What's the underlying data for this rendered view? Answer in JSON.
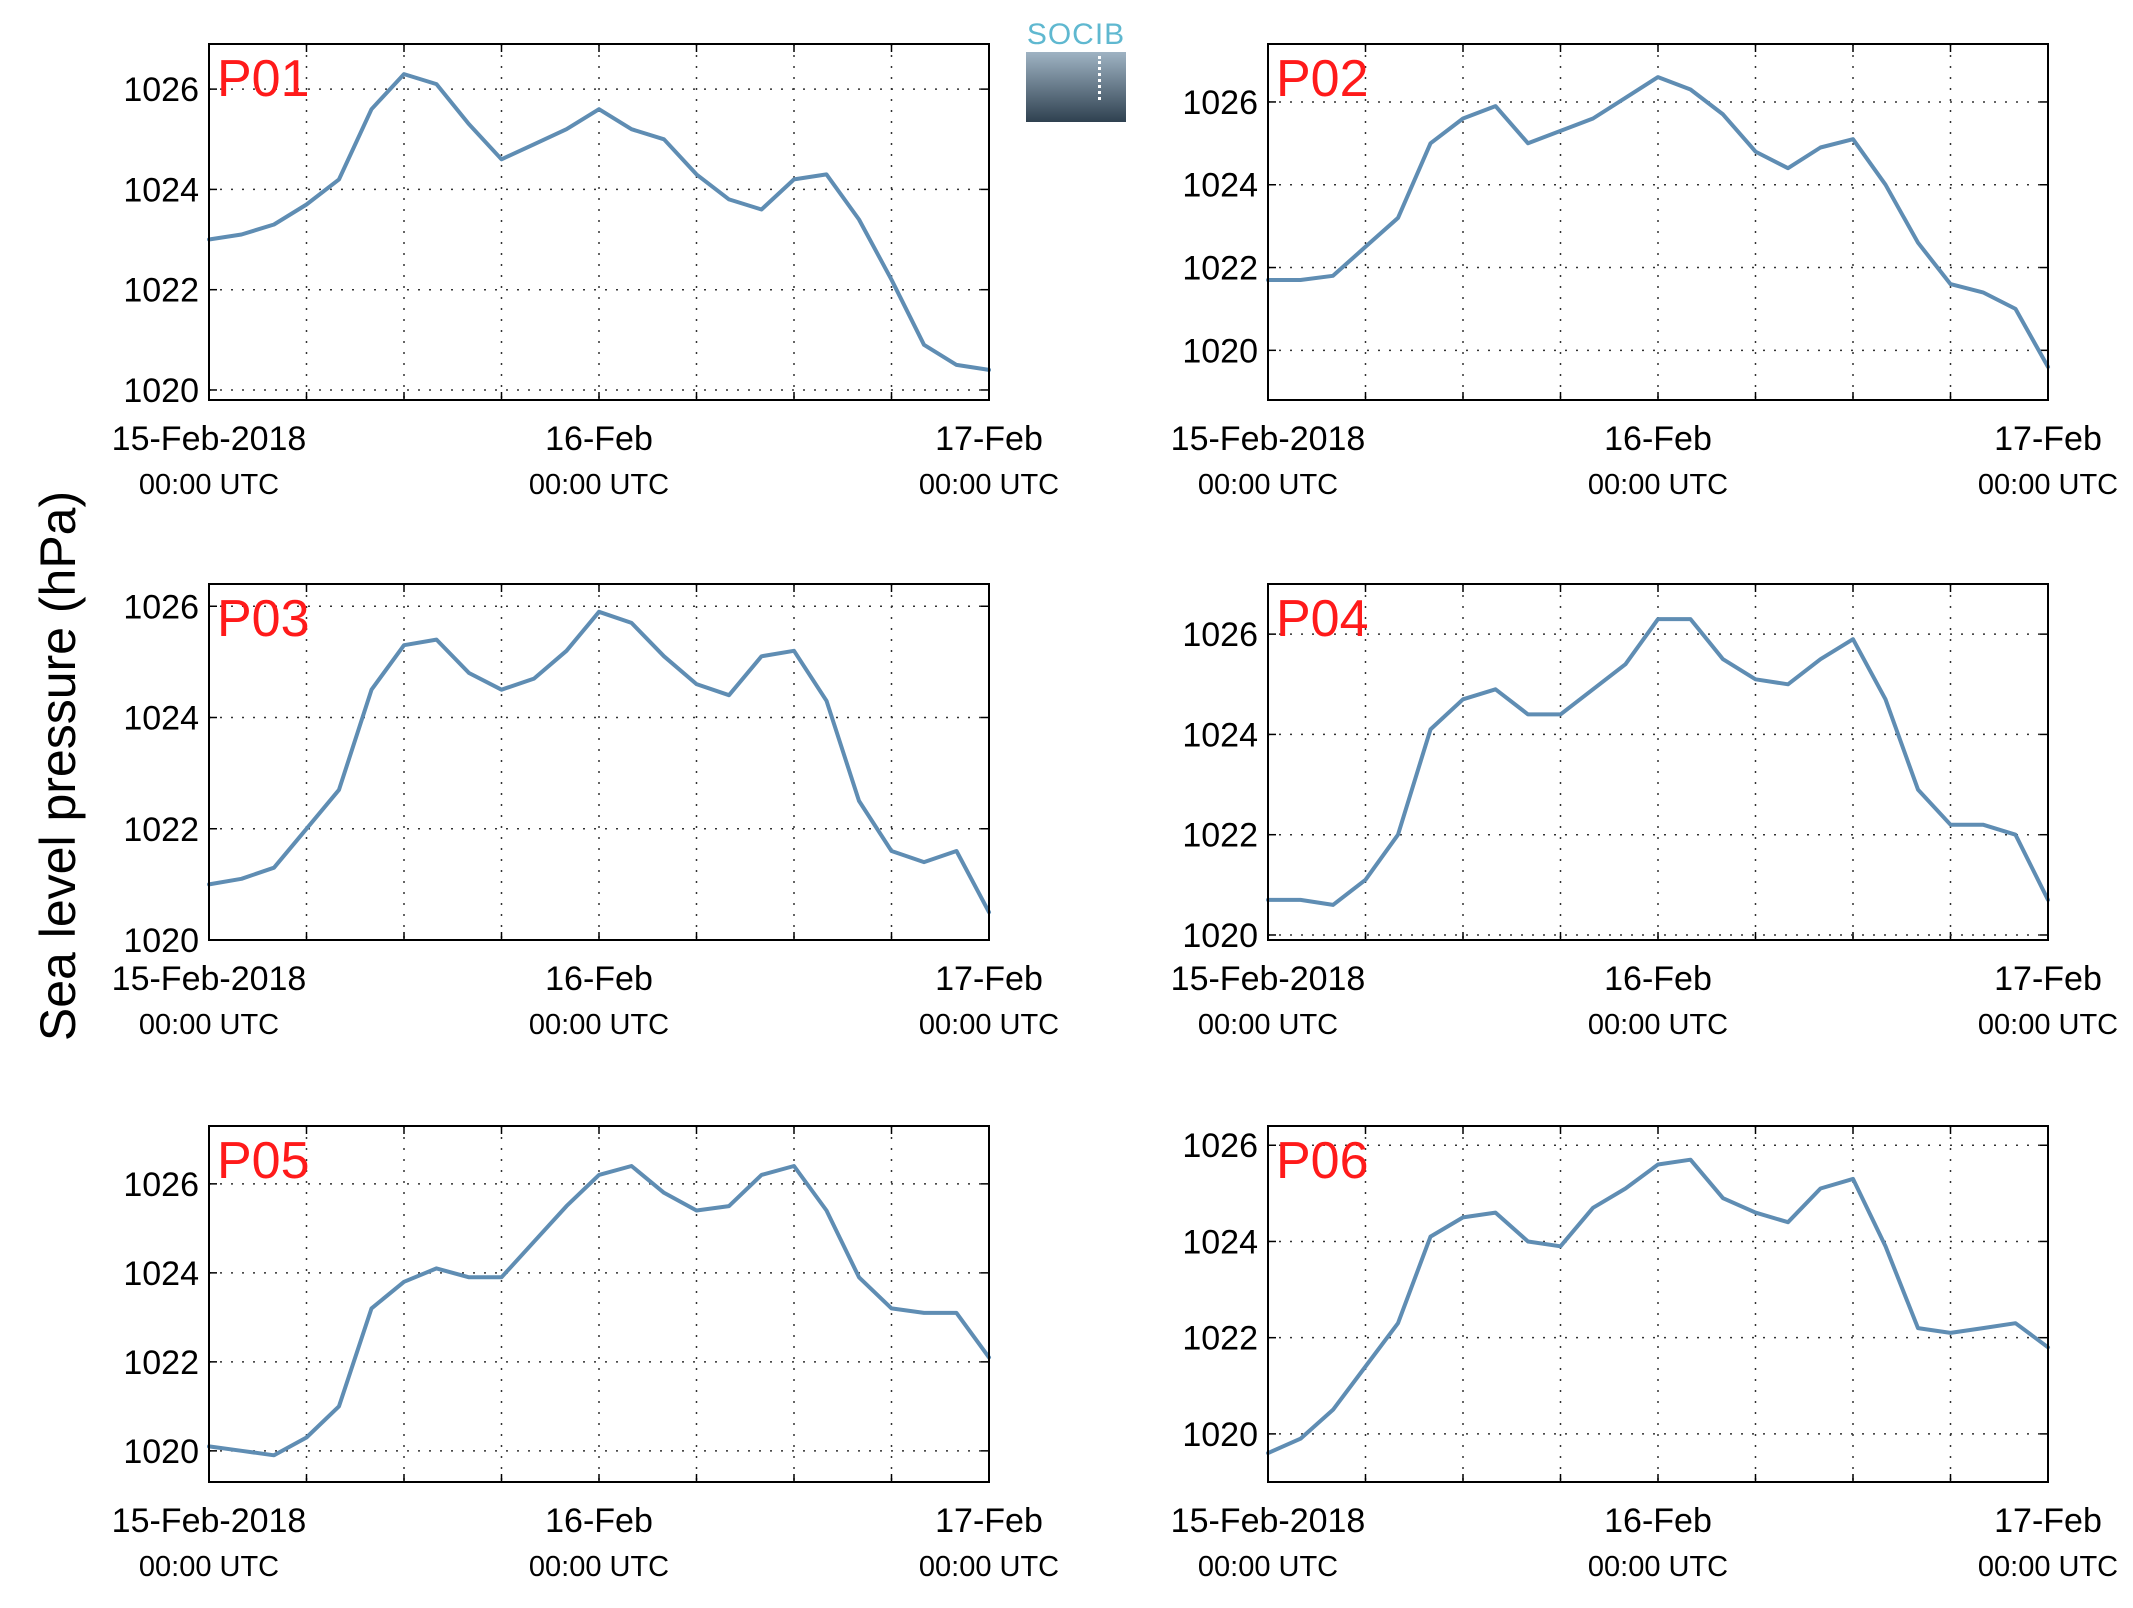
{
  "figure": {
    "ylabel": "Sea level pressure (hPa)",
    "logo_text": "SOCIB"
  },
  "chart_data": [
    {
      "type": "line",
      "title": "P01",
      "x_ticks": [
        {
          "major": "15-Feb-2018",
          "minor": "00:00 UTC"
        },
        {
          "major": "16-Feb",
          "minor": "00:00 UTC"
        },
        {
          "major": "17-Feb",
          "minor": "00:00 UTC"
        }
      ],
      "x_hours": [
        0,
        2,
        4,
        6,
        8,
        10,
        12,
        14,
        16,
        18,
        20,
        22,
        24,
        26,
        28,
        30,
        32,
        34,
        36,
        38,
        40,
        42,
        44,
        46,
        48
      ],
      "xlim": [
        0,
        48
      ],
      "ylim": [
        1019.8,
        1026.9
      ],
      "yticks": [
        1020,
        1022,
        1024,
        1026
      ],
      "series": [
        {
          "color": "#5f8db3",
          "values": [
            1023.0,
            1023.1,
            1023.3,
            1023.7,
            1024.2,
            1025.6,
            1026.3,
            1026.1,
            1025.3,
            1024.6,
            1024.9,
            1025.2,
            1025.6,
            1025.2,
            1025.0,
            1024.3,
            1023.8,
            1023.6,
            1024.2,
            1024.3,
            1023.4,
            1022.2,
            1020.9,
            1020.5,
            1020.4
          ]
        }
      ],
      "grid": true
    },
    {
      "type": "line",
      "title": "P02",
      "x_ticks": [
        {
          "major": "15-Feb-2018",
          "minor": "00:00 UTC"
        },
        {
          "major": "16-Feb",
          "minor": "00:00 UTC"
        },
        {
          "major": "17-Feb",
          "minor": "00:00 UTC"
        }
      ],
      "x_hours": [
        0,
        2,
        4,
        6,
        8,
        10,
        12,
        14,
        16,
        18,
        20,
        22,
        24,
        26,
        28,
        30,
        32,
        34,
        36,
        38,
        40,
        42,
        44,
        46,
        48
      ],
      "xlim": [
        0,
        48
      ],
      "ylim": [
        1018.8,
        1027.4
      ],
      "yticks": [
        1020,
        1022,
        1024,
        1026
      ],
      "series": [
        {
          "color": "#5f8db3",
          "values": [
            1021.7,
            1021.7,
            1021.8,
            1022.5,
            1023.2,
            1025.0,
            1025.6,
            1025.9,
            1025.0,
            1025.3,
            1025.6,
            1026.1,
            1026.6,
            1026.3,
            1025.7,
            1024.8,
            1024.4,
            1024.9,
            1025.1,
            1024.0,
            1022.6,
            1021.6,
            1021.4,
            1021.0,
            1019.6
          ]
        }
      ],
      "grid": true
    },
    {
      "type": "line",
      "title": "P03",
      "x_ticks": [
        {
          "major": "15-Feb-2018",
          "minor": "00:00 UTC"
        },
        {
          "major": "16-Feb",
          "minor": "00:00 UTC"
        },
        {
          "major": "17-Feb",
          "minor": "00:00 UTC"
        }
      ],
      "x_hours": [
        0,
        2,
        4,
        6,
        8,
        10,
        12,
        14,
        16,
        18,
        20,
        22,
        24,
        26,
        28,
        30,
        32,
        34,
        36,
        38,
        40,
        42,
        44,
        46,
        48
      ],
      "xlim": [
        0,
        48
      ],
      "ylim": [
        1020.0,
        1026.4
      ],
      "yticks": [
        1020,
        1022,
        1024,
        1026
      ],
      "series": [
        {
          "color": "#5f8db3",
          "values": [
            1021.0,
            1021.1,
            1021.3,
            1022.0,
            1022.7,
            1024.5,
            1025.3,
            1025.4,
            1024.8,
            1024.5,
            1024.7,
            1025.2,
            1025.9,
            1025.7,
            1025.1,
            1024.6,
            1024.4,
            1025.1,
            1025.2,
            1024.3,
            1022.5,
            1021.6,
            1021.4,
            1021.6,
            1020.5
          ]
        }
      ],
      "grid": true
    },
    {
      "type": "line",
      "title": "P04",
      "x_ticks": [
        {
          "major": "15-Feb-2018",
          "minor": "00:00 UTC"
        },
        {
          "major": "16-Feb",
          "minor": "00:00 UTC"
        },
        {
          "major": "17-Feb",
          "minor": "00:00 UTC"
        }
      ],
      "x_hours": [
        0,
        2,
        4,
        6,
        8,
        10,
        12,
        14,
        16,
        18,
        20,
        22,
        24,
        26,
        28,
        30,
        32,
        34,
        36,
        38,
        40,
        42,
        44,
        46,
        48
      ],
      "xlim": [
        0,
        48
      ],
      "ylim": [
        1019.9,
        1027.0
      ],
      "yticks": [
        1020,
        1022,
        1024,
        1026
      ],
      "series": [
        {
          "color": "#5f8db3",
          "values": [
            1020.7,
            1020.7,
            1020.6,
            1021.1,
            1022.0,
            1024.1,
            1024.7,
            1024.9,
            1024.4,
            1024.4,
            1024.9,
            1025.4,
            1026.3,
            1026.3,
            1025.5,
            1025.1,
            1025.0,
            1025.5,
            1025.9,
            1024.7,
            1022.9,
            1022.2,
            1022.2,
            1022.0,
            1020.7
          ]
        }
      ],
      "grid": true
    },
    {
      "type": "line",
      "title": "P05",
      "x_ticks": [
        {
          "major": "15-Feb-2018",
          "minor": "00:00 UTC"
        },
        {
          "major": "16-Feb",
          "minor": "00:00 UTC"
        },
        {
          "major": "17-Feb",
          "minor": "00:00 UTC"
        }
      ],
      "x_hours": [
        0,
        2,
        4,
        6,
        8,
        10,
        12,
        14,
        16,
        18,
        20,
        22,
        24,
        26,
        28,
        30,
        32,
        34,
        36,
        38,
        40,
        42,
        44,
        46,
        48
      ],
      "xlim": [
        0,
        48
      ],
      "ylim": [
        1019.3,
        1027.3
      ],
      "yticks": [
        1020,
        1022,
        1024,
        1026
      ],
      "series": [
        {
          "color": "#5f8db3",
          "values": [
            1020.1,
            1020.0,
            1019.9,
            1020.3,
            1021.0,
            1023.2,
            1023.8,
            1024.1,
            1023.9,
            1023.9,
            1024.7,
            1025.5,
            1026.2,
            1026.4,
            1025.8,
            1025.4,
            1025.5,
            1026.2,
            1026.4,
            1025.4,
            1023.9,
            1023.2,
            1023.1,
            1023.1,
            1022.1
          ]
        }
      ],
      "grid": true
    },
    {
      "type": "line",
      "title": "P06",
      "x_ticks": [
        {
          "major": "15-Feb-2018",
          "minor": "00:00 UTC"
        },
        {
          "major": "16-Feb",
          "minor": "00:00 UTC"
        },
        {
          "major": "17-Feb",
          "minor": "00:00 UTC"
        }
      ],
      "x_hours": [
        0,
        2,
        4,
        6,
        8,
        10,
        12,
        14,
        16,
        18,
        20,
        22,
        24,
        26,
        28,
        30,
        32,
        34,
        36,
        38,
        40,
        42,
        44,
        46,
        48
      ],
      "xlim": [
        0,
        48
      ],
      "ylim": [
        1019.0,
        1026.4
      ],
      "yticks": [
        1020,
        1022,
        1024,
        1026
      ],
      "series": [
        {
          "color": "#5f8db3",
          "values": [
            1019.6,
            1019.9,
            1020.5,
            1021.4,
            1022.3,
            1024.1,
            1024.5,
            1024.6,
            1024.0,
            1023.9,
            1024.7,
            1025.1,
            1025.6,
            1025.7,
            1024.9,
            1024.6,
            1024.4,
            1025.1,
            1025.3,
            1023.9,
            1022.2,
            1022.1,
            1022.2,
            1022.3,
            1021.8
          ]
        }
      ],
      "grid": true
    }
  ]
}
